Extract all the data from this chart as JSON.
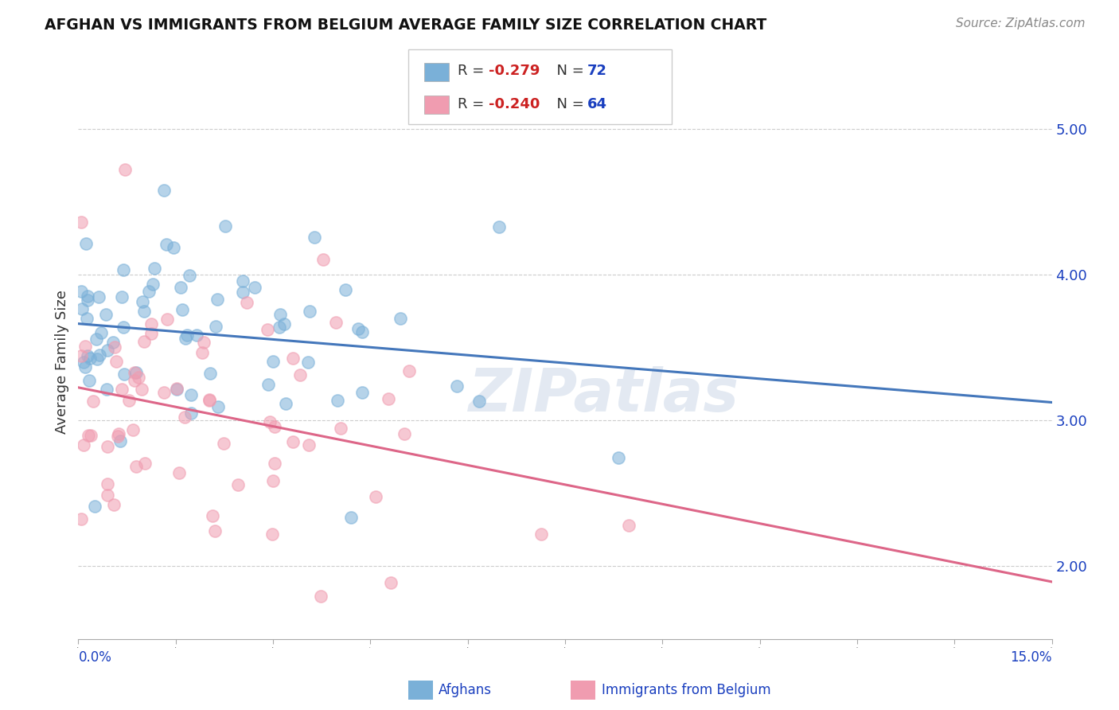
{
  "title": "AFGHAN VS IMMIGRANTS FROM BELGIUM AVERAGE FAMILY SIZE CORRELATION CHART",
  "source": "Source: ZipAtlas.com",
  "ylabel": "Average Family Size",
  "xlim": [
    0.0,
    15.0
  ],
  "ylim": [
    1.5,
    5.3
  ],
  "yticks_right": [
    2.0,
    3.0,
    4.0,
    5.0
  ],
  "watermark": "ZIPatlas",
  "afghans_color": "#7ab0d8",
  "belgium_color": "#f09cb0",
  "trend_afghan_color": "#4477bb",
  "trend_belgium_color": "#dd6688",
  "background_color": "#ffffff",
  "grid_color": "#cccccc",
  "R_color": "#cc2222",
  "N_color": "#1a3fbf",
  "label_color": "#1a3fbf"
}
